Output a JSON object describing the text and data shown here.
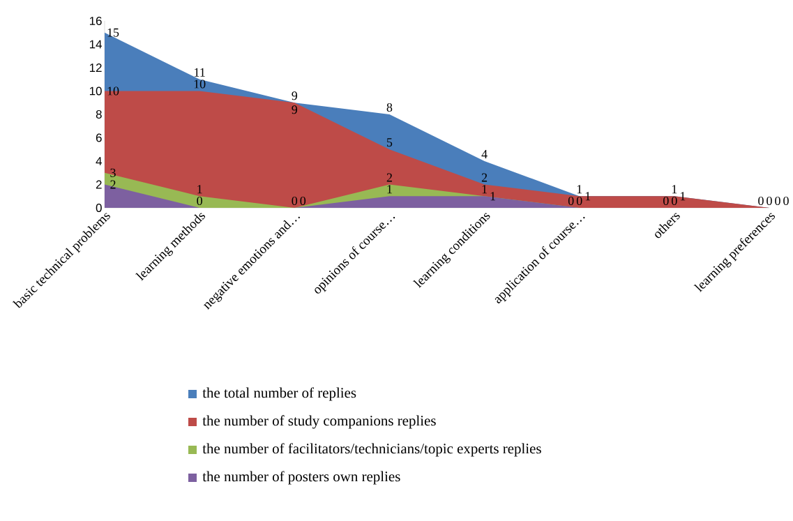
{
  "chart_data": {
    "type": "area",
    "categories": [
      "basic technical problems",
      "learning methods",
      "negative emotions and…",
      "opinions of course…",
      "learning conditions",
      "application of course…",
      "others",
      "learning preferences"
    ],
    "series": [
      {
        "name": "the total number of replies",
        "color": "#4a7ebb",
        "values": [
          15,
          11,
          9,
          8,
          4,
          1,
          1,
          0
        ]
      },
      {
        "name": "the number of study companions replies",
        "color": "#be4b48",
        "values": [
          10,
          10,
          9,
          5,
          2,
          1,
          1,
          0
        ]
      },
      {
        "name": "the number of facilitators/technicians/topic experts replies",
        "color": "#98b954",
        "values": [
          3,
          1,
          0,
          2,
          1,
          0,
          0,
          0
        ]
      },
      {
        "name": "the number of posters own replies",
        "color": "#7d60a0",
        "values": [
          2,
          0,
          0,
          1,
          1,
          0,
          0,
          0
        ]
      }
    ],
    "ylim": [
      0,
      16
    ],
    "yticks": [
      0,
      2,
      4,
      6,
      8,
      10,
      12,
      14,
      16
    ],
    "data_labels": true,
    "legend": "bottom",
    "grid": false
  }
}
